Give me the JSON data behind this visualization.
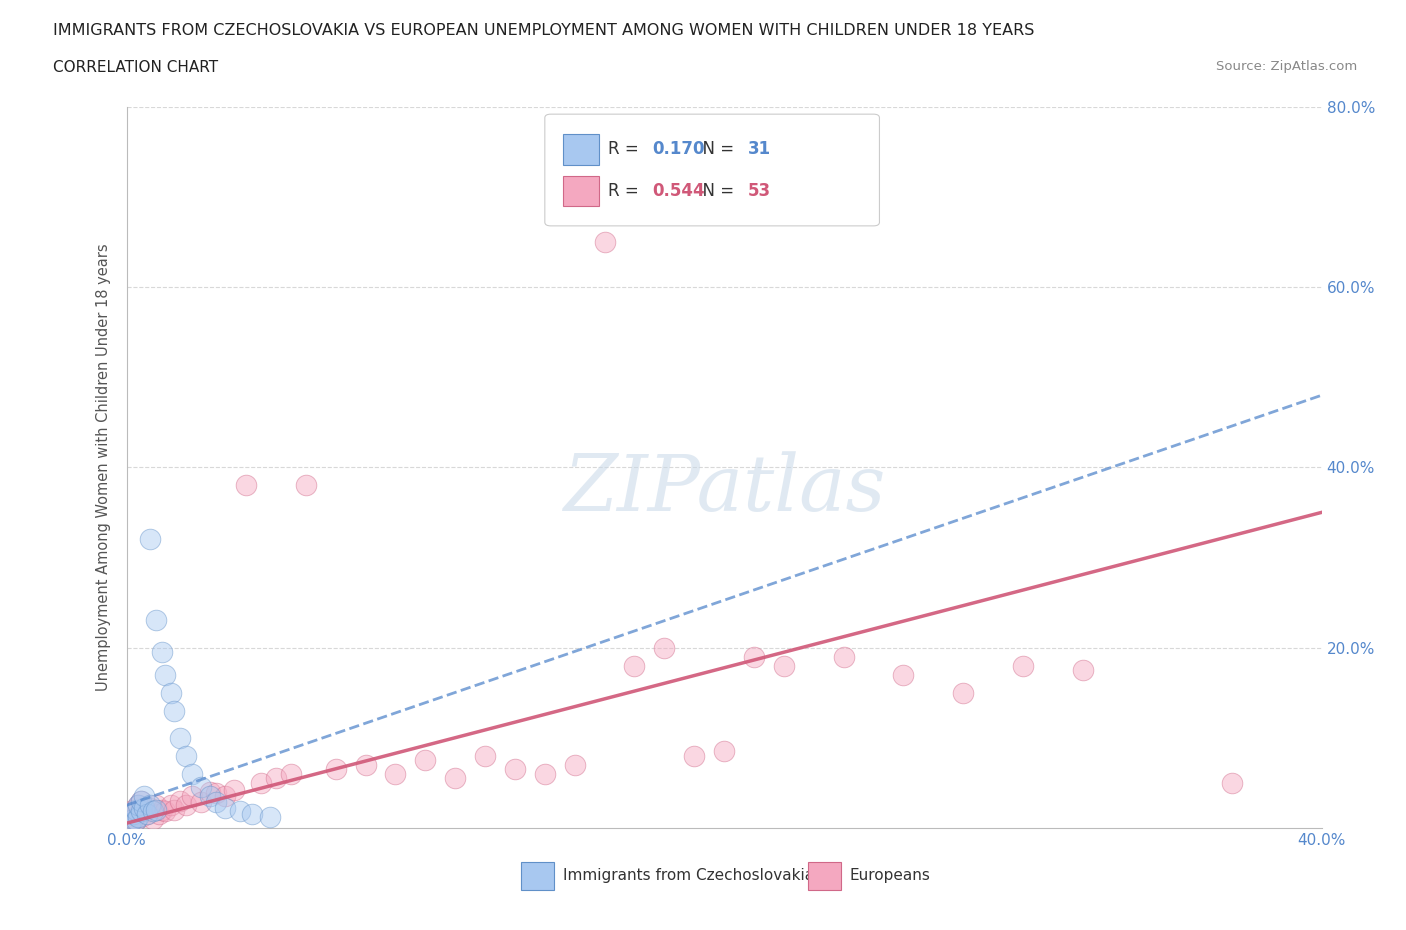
{
  "title": "IMMIGRANTS FROM CZECHOSLOVAKIA VS EUROPEAN UNEMPLOYMENT AMONG WOMEN WITH CHILDREN UNDER 18 YEARS",
  "subtitle": "CORRELATION CHART",
  "source": "Source: ZipAtlas.com",
  "ylabel": "Unemployment Among Women with Children Under 18 years",
  "xlim": [
    0.0,
    0.4
  ],
  "ylim": [
    0.0,
    0.8
  ],
  "xticks": [
    0.0,
    0.05,
    0.1,
    0.15,
    0.2,
    0.25,
    0.3,
    0.35,
    0.4
  ],
  "yticks": [
    0.0,
    0.2,
    0.4,
    0.6,
    0.8
  ],
  "legend_blue_R": "0.170",
  "legend_blue_N": "31",
  "legend_pink_R": "0.544",
  "legend_pink_N": "53",
  "blue_scatter_x": [
    0.001,
    0.002,
    0.002,
    0.003,
    0.003,
    0.004,
    0.004,
    0.005,
    0.005,
    0.006,
    0.006,
    0.007,
    0.008,
    0.008,
    0.009,
    0.01,
    0.01,
    0.012,
    0.013,
    0.015,
    0.016,
    0.018,
    0.02,
    0.022,
    0.025,
    0.028,
    0.03,
    0.033,
    0.038,
    0.042,
    0.048
  ],
  "blue_scatter_y": [
    0.005,
    0.01,
    0.015,
    0.008,
    0.02,
    0.012,
    0.025,
    0.018,
    0.03,
    0.022,
    0.035,
    0.015,
    0.025,
    0.32,
    0.018,
    0.02,
    0.23,
    0.195,
    0.17,
    0.15,
    0.13,
    0.1,
    0.08,
    0.06,
    0.045,
    0.035,
    0.028,
    0.022,
    0.018,
    0.015,
    0.012
  ],
  "pink_scatter_x": [
    0.001,
    0.002,
    0.002,
    0.003,
    0.004,
    0.004,
    0.005,
    0.005,
    0.006,
    0.007,
    0.008,
    0.009,
    0.01,
    0.011,
    0.012,
    0.013,
    0.015,
    0.016,
    0.018,
    0.02,
    0.022,
    0.025,
    0.028,
    0.03,
    0.033,
    0.036,
    0.04,
    0.045,
    0.05,
    0.055,
    0.06,
    0.07,
    0.08,
    0.09,
    0.1,
    0.11,
    0.12,
    0.13,
    0.14,
    0.15,
    0.16,
    0.17,
    0.18,
    0.19,
    0.2,
    0.21,
    0.22,
    0.24,
    0.26,
    0.28,
    0.3,
    0.32,
    0.37
  ],
  "pink_scatter_y": [
    0.005,
    0.01,
    0.02,
    0.008,
    0.015,
    0.025,
    0.012,
    0.03,
    0.018,
    0.015,
    0.022,
    0.01,
    0.025,
    0.015,
    0.02,
    0.018,
    0.025,
    0.02,
    0.03,
    0.025,
    0.035,
    0.028,
    0.04,
    0.038,
    0.035,
    0.042,
    0.38,
    0.05,
    0.055,
    0.06,
    0.38,
    0.065,
    0.07,
    0.06,
    0.075,
    0.055,
    0.08,
    0.065,
    0.06,
    0.07,
    0.65,
    0.18,
    0.2,
    0.08,
    0.085,
    0.19,
    0.18,
    0.19,
    0.17,
    0.15,
    0.18,
    0.175,
    0.05
  ],
  "watermark_text": "ZIPatlas",
  "scatter_size": 220,
  "scatter_alpha": 0.45,
  "blue_fill": "#A8C8F0",
  "blue_edge": "#6090C8",
  "pink_fill": "#F4A8C0",
  "pink_edge": "#D06888",
  "blue_line_color": "#5588CC",
  "pink_line_color": "#D05878",
  "grid_color": "#d8d8d8",
  "tick_color": "#5588CC",
  "bg_color": "#ffffff"
}
